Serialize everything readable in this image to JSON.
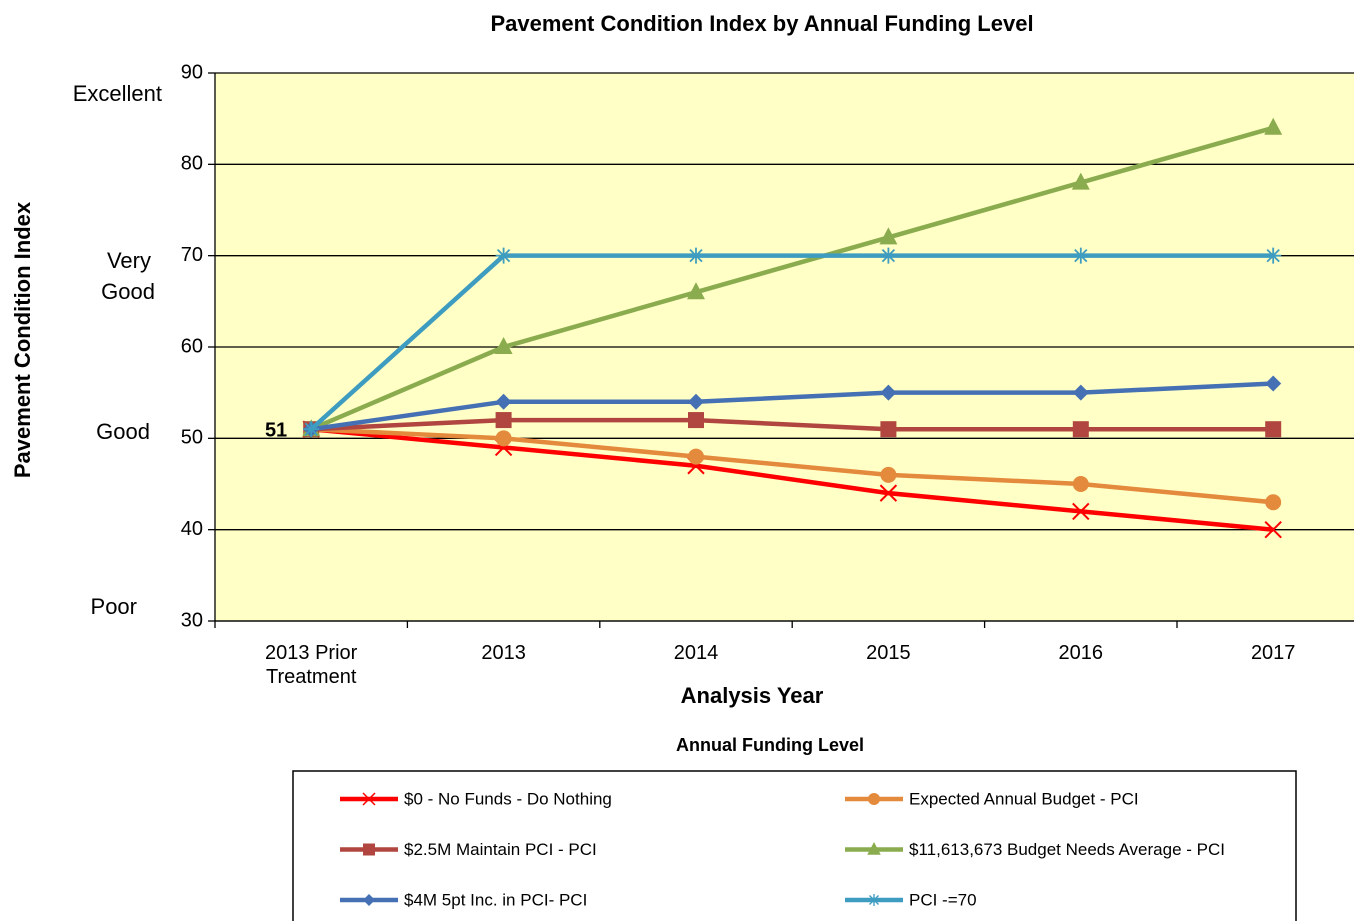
{
  "chart_data": {
    "type": "line",
    "title": "Pavement Condition Index by Annual Funding Level",
    "x_label": "Analysis Year",
    "y_label": "Pavement Condition Index",
    "legend_title": "Annual Funding Level",
    "categories": [
      "2013 Prior Treatment",
      "2013",
      "2014",
      "2015",
      "2016",
      "2017"
    ],
    "ylim": [
      30,
      90
    ],
    "yticks": [
      30,
      40,
      50,
      60,
      70,
      80,
      90
    ],
    "grid": true,
    "background": "#ffffc6",
    "condition_labels": [
      "Excellent",
      "Very Good",
      "Good",
      "Poor"
    ],
    "series": [
      {
        "name": "$0 - No Funds - Do Nothing",
        "color": "#ff0000",
        "marker": "x",
        "values": [
          51,
          49,
          47,
          44,
          42,
          40
        ]
      },
      {
        "name": "Expected Annual Budget  - PCI",
        "color": "#e48a3c",
        "marker": "circle",
        "values": [
          51,
          50,
          48,
          46,
          45,
          43
        ]
      },
      {
        "name": "$2.5M Maintain PCI  - PCI",
        "color": "#b0463f",
        "marker": "square",
        "values": [
          51,
          52,
          52,
          51,
          51,
          51
        ]
      },
      {
        "name": "$11,613,673 Budget Needs Average - PCI",
        "color": "#8aac4e",
        "marker": "triangle",
        "values": [
          51,
          60,
          66,
          72,
          78,
          84
        ]
      },
      {
        "name": "$4M 5pt Inc. in PCI- PCI",
        "color": "#4571b4",
        "marker": "diamond",
        "values": [
          51,
          54,
          54,
          55,
          55,
          56
        ]
      },
      {
        "name": "PCI -=70",
        "color": "#3e9cc0",
        "marker": "star",
        "values": [
          51,
          70,
          70,
          70,
          70,
          70
        ]
      }
    ]
  }
}
